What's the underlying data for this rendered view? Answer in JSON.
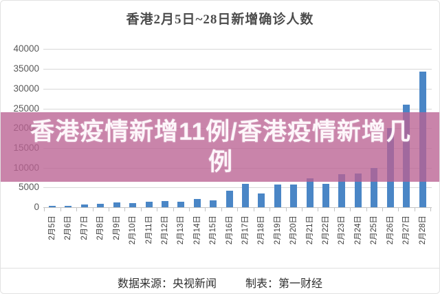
{
  "title": "香港2月5日~28日新增确诊人数",
  "overlay": {
    "lines": [
      "香港疫情新增11例/香港疫情新增几",
      "例"
    ],
    "band_color": "rgba(186,98,146,0.78)",
    "text_color": "#fdf6fa"
  },
  "footer": {
    "source": "数据来源：央视新闻",
    "maker": "制表：第一财经"
  },
  "chart_data": {
    "type": "bar",
    "title": "香港2月5日~28日新增确诊人数",
    "categories": [
      "2月5日",
      "2月6日",
      "2月7日",
      "2月8日",
      "2月9日",
      "2月10日",
      "2月11日",
      "2月12日",
      "2月13日",
      "2月14日",
      "2月15日",
      "2月16日",
      "2月17日",
      "2月18日",
      "2月19日",
      "2月20日",
      "2月21日",
      "2月22日",
      "2月23日",
      "2月24日",
      "2月25日",
      "2月26日",
      "2月27日",
      "2月28日"
    ],
    "values": [
      400,
      400,
      650,
      800,
      1200,
      1050,
      1350,
      1500,
      1400,
      2100,
      1800,
      4200,
      6000,
      3500,
      5700,
      5700,
      7400,
      6000,
      8400,
      8600,
      10000,
      20000,
      26000,
      34400
    ],
    "ylim": [
      0,
      40000
    ],
    "ytick_interval": 5000,
    "ytick_labels": [
      "0",
      "5000",
      "10000",
      "15000",
      "20000",
      "25000",
      "30000",
      "35000",
      "40000"
    ],
    "bar_color": "#4a86c6",
    "grid": true,
    "legend": false,
    "xlabel": "",
    "ylabel": ""
  }
}
